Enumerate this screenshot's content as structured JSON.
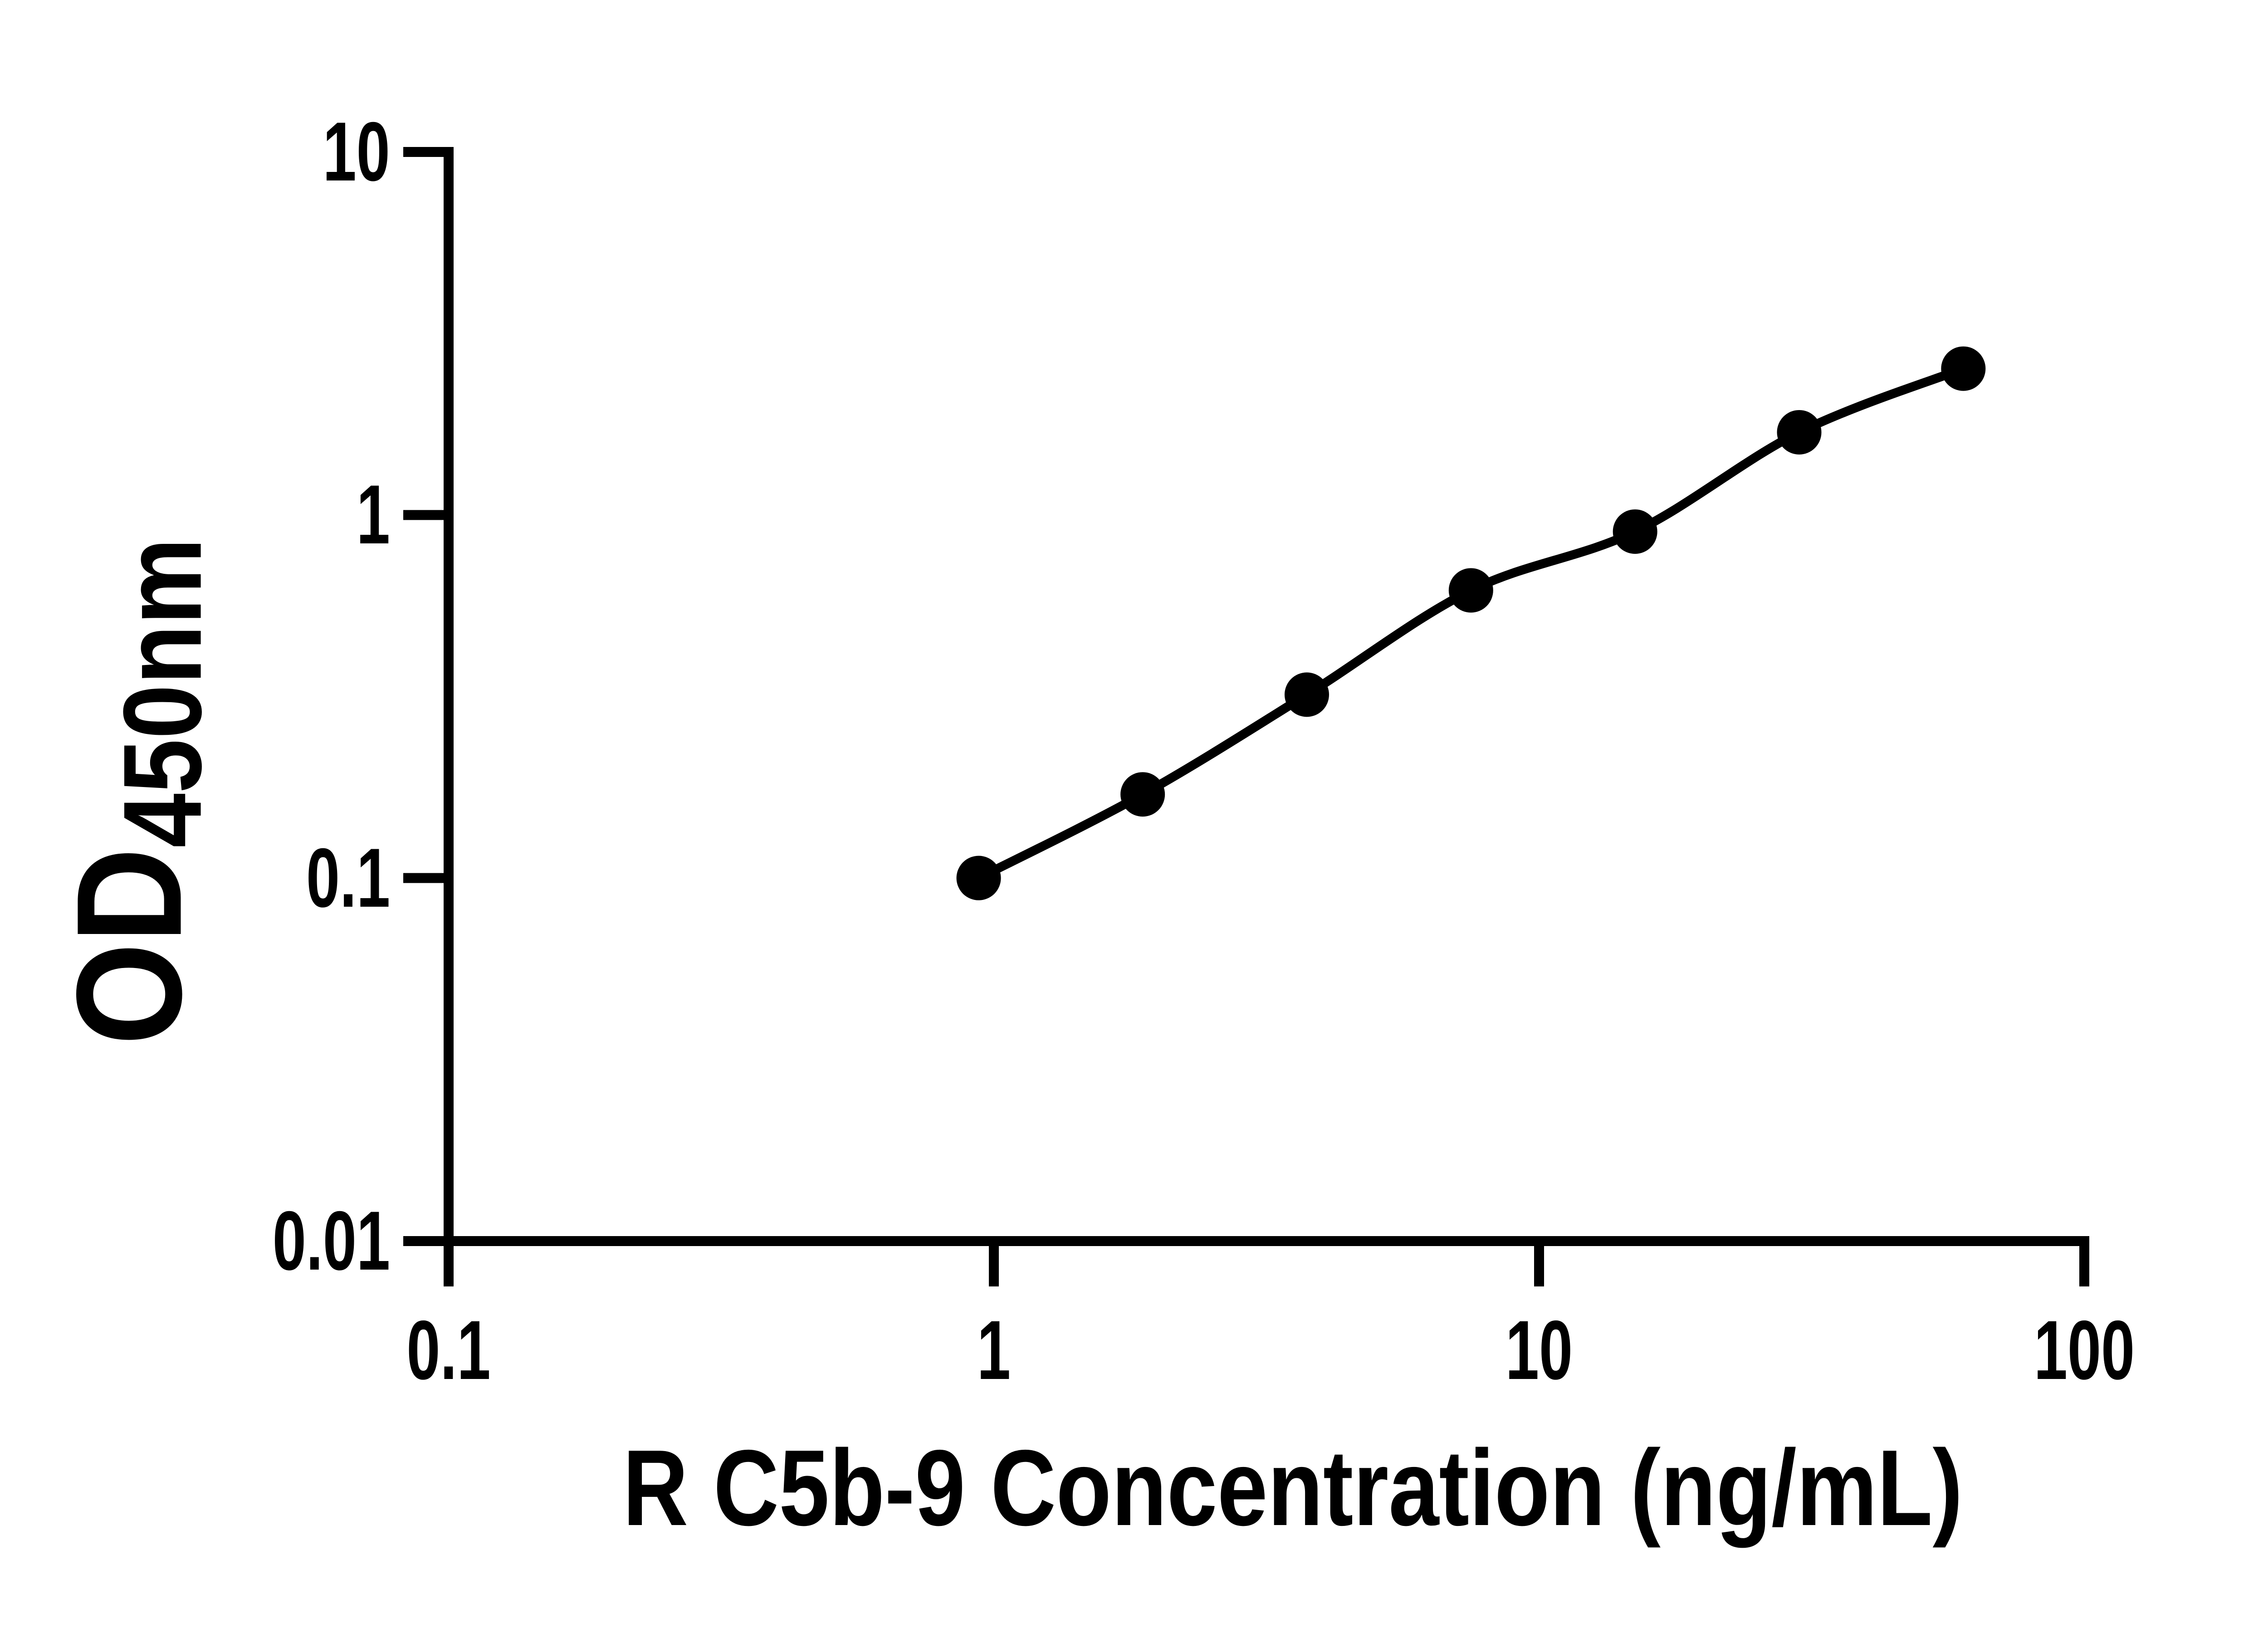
{
  "chart_data": {
    "type": "line",
    "title": "",
    "xlabel": "R C5b-9 Concentration (ng/mL)",
    "ylabel_main": "OD",
    "ylabel_sub": "450nm",
    "x_scale": "log",
    "y_scale": "log",
    "xlim": [
      0.1,
      100
    ],
    "ylim": [
      0.01,
      10
    ],
    "grid": false,
    "legend": null,
    "axis_color": "#000000",
    "background_color": "#ffffff",
    "x_ticks": [
      {
        "value": 0.1,
        "label": "0.1"
      },
      {
        "value": 1,
        "label": "1"
      },
      {
        "value": 10,
        "label": "10"
      },
      {
        "value": 100,
        "label": "100"
      }
    ],
    "y_ticks": [
      {
        "value": 10,
        "label": "10"
      },
      {
        "value": 1,
        "label": "1"
      },
      {
        "value": 0.1,
        "label": "0.1"
      },
      {
        "value": 0.01,
        "label": "0.01"
      }
    ],
    "series": [
      {
        "marker": "circle",
        "marker_color": "#000000",
        "line_color": "#000000",
        "x": [
          0.938,
          1.875,
          3.75,
          7.5,
          15,
          30,
          60
        ],
        "y": [
          0.1,
          0.17,
          0.32,
          0.62,
          0.9,
          1.69,
          2.53
        ]
      }
    ]
  }
}
